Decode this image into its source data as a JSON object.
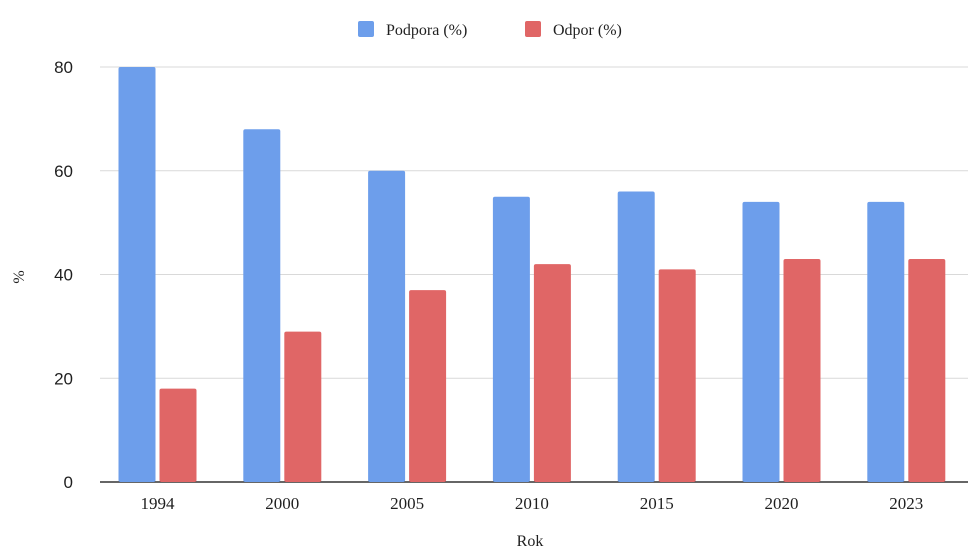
{
  "chart_data": {
    "type": "bar",
    "title": "",
    "xlabel": "Rok",
    "ylabel": "%",
    "categories": [
      "1994",
      "2000",
      "2005",
      "2010",
      "2015",
      "2020",
      "2023"
    ],
    "series": [
      {
        "name": "Podpora (%)",
        "color": "#6d9eeb",
        "values": [
          80,
          68,
          60,
          55,
          56,
          54,
          54
        ]
      },
      {
        "name": "Odpor (%)",
        "color": "#e06666",
        "values": [
          18,
          29,
          37,
          42,
          41,
          43,
          43
        ]
      }
    ],
    "ylim": [
      0,
      80
    ],
    "yticks": [
      0,
      20,
      40,
      60,
      80
    ],
    "grid": true,
    "legend_position": "top"
  }
}
